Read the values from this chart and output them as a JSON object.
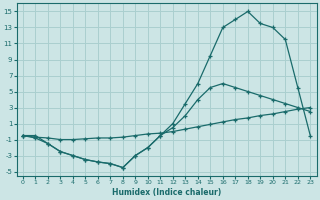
{
  "bg_color": "#cce5e5",
  "grid_color": "#aacfcf",
  "line_color": "#1a6b6b",
  "xlabel": "Humidex (Indice chaleur)",
  "xlim": [
    -0.5,
    23.5
  ],
  "ylim": [
    -5.5,
    16
  ],
  "xticks": [
    0,
    1,
    2,
    3,
    4,
    5,
    6,
    7,
    8,
    9,
    10,
    11,
    12,
    13,
    14,
    15,
    16,
    17,
    18,
    19,
    20,
    21,
    22,
    23
  ],
  "yticks": [
    -5,
    -3,
    -1,
    1,
    3,
    5,
    7,
    9,
    11,
    13,
    15
  ],
  "line_peaked_x": [
    0,
    1,
    2,
    3,
    4,
    5,
    6,
    7,
    8,
    9,
    10,
    11,
    12,
    13,
    14,
    15,
    16,
    17,
    18,
    19,
    20,
    21,
    22,
    23
  ],
  "line_peaked_y": [
    -0.5,
    -0.8,
    -1.5,
    -2.5,
    -3.0,
    -3.5,
    -3.8,
    -4.0,
    -4.5,
    -3.0,
    -2.0,
    -0.5,
    1.0,
    3.5,
    6.0,
    9.5,
    13.0,
    14.0,
    15.0,
    13.5,
    13.0,
    11.5,
    5.5,
    -0.5
  ],
  "line_flat_x": [
    0,
    1,
    2,
    3,
    4,
    5,
    6,
    7,
    8,
    9,
    10,
    11,
    12,
    13,
    14,
    15,
    16,
    17,
    18,
    19,
    20,
    21,
    22,
    23
  ],
  "line_flat_y": [
    -0.5,
    -0.7,
    -0.8,
    -1.0,
    -1.0,
    -0.9,
    -0.8,
    -0.8,
    -0.7,
    -0.5,
    -0.3,
    -0.2,
    0.0,
    0.3,
    0.6,
    0.9,
    1.2,
    1.5,
    1.7,
    2.0,
    2.2,
    2.5,
    2.8,
    3.0
  ],
  "line_mid_x": [
    0,
    1,
    2,
    3,
    4,
    5,
    6,
    7,
    8,
    9,
    10,
    11,
    12,
    13,
    14,
    15,
    16,
    17,
    18,
    19,
    20,
    21,
    22,
    23
  ],
  "line_mid_y": [
    -0.5,
    -0.5,
    -1.5,
    -2.5,
    -3.0,
    -3.5,
    -3.8,
    -4.0,
    -4.5,
    -3.0,
    -2.0,
    -0.5,
    0.5,
    2.0,
    4.0,
    5.5,
    6.0,
    5.5,
    5.0,
    4.5,
    4.0,
    3.5,
    3.0,
    2.5
  ]
}
